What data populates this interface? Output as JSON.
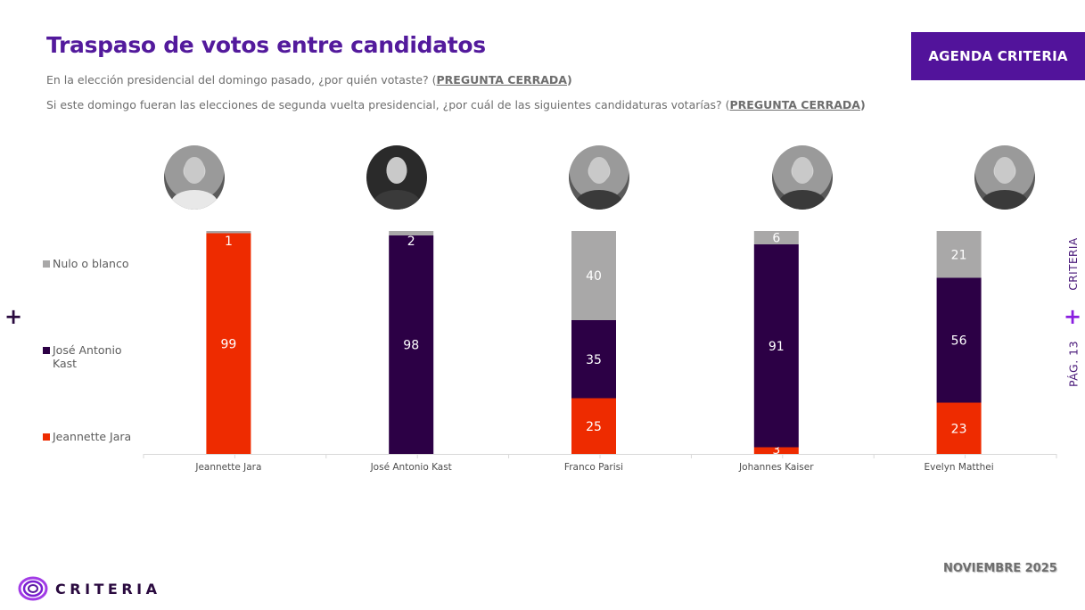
{
  "header": {
    "title": "Traspaso de votos entre candidatos",
    "subtitle1": "En la elección presidencial del domingo pasado, ¿por quién votaste? (",
    "subtitle1_tag": "PREGUNTA CERRADA",
    "subtitle2": "Si este domingo fueran las elecciones de segunda vuelta presidencial, ¿por cuál de las siguientes candidaturas votarías? (",
    "subtitle2_tag": "PREGUNTA CERRADA",
    "close_paren": ")",
    "agenda_button": "AGENDA CRITERIA"
  },
  "side": {
    "brand": "CRITERIA",
    "page": "PÁG. 13",
    "plus": "+"
  },
  "footer": {
    "date": "NOVIEMBRE 2025",
    "logo_text": "CRITERIA"
  },
  "colors": {
    "jara": "#ee2b00",
    "kast": "#2c0045",
    "nulo": "#a9a8a8",
    "brand_purple": "#52139b"
  },
  "legend": [
    {
      "label": "Nulo o blanco",
      "color": "#a9a8a8"
    },
    {
      "label": "José Antonio Kast",
      "color": "#2c0045"
    },
    {
      "label": "Jeannette Jara",
      "color": "#ee2b00"
    }
  ],
  "chart_data": {
    "type": "bar",
    "stacked": true,
    "title": "Traspaso de votos entre candidatos",
    "xlabel": "",
    "ylabel": "",
    "ylim": [
      0,
      100
    ],
    "grid": false,
    "legend_position": "left",
    "categories": [
      "Jeannette Jara",
      "José Antonio Kast",
      "Franco Parisi",
      "Johannes Kaiser",
      "Evelyn Matthei"
    ],
    "series": [
      {
        "name": "Jeannette Jara",
        "color": "#ee2b00",
        "values": [
          99,
          0,
          25,
          3,
          23
        ]
      },
      {
        "name": "José Antonio Kast",
        "color": "#2c0045",
        "values": [
          0,
          98,
          35,
          91,
          56
        ]
      },
      {
        "name": "Nulo o blanco",
        "color": "#a9a8a8",
        "values": [
          1,
          2,
          40,
          6,
          21
        ]
      }
    ]
  }
}
